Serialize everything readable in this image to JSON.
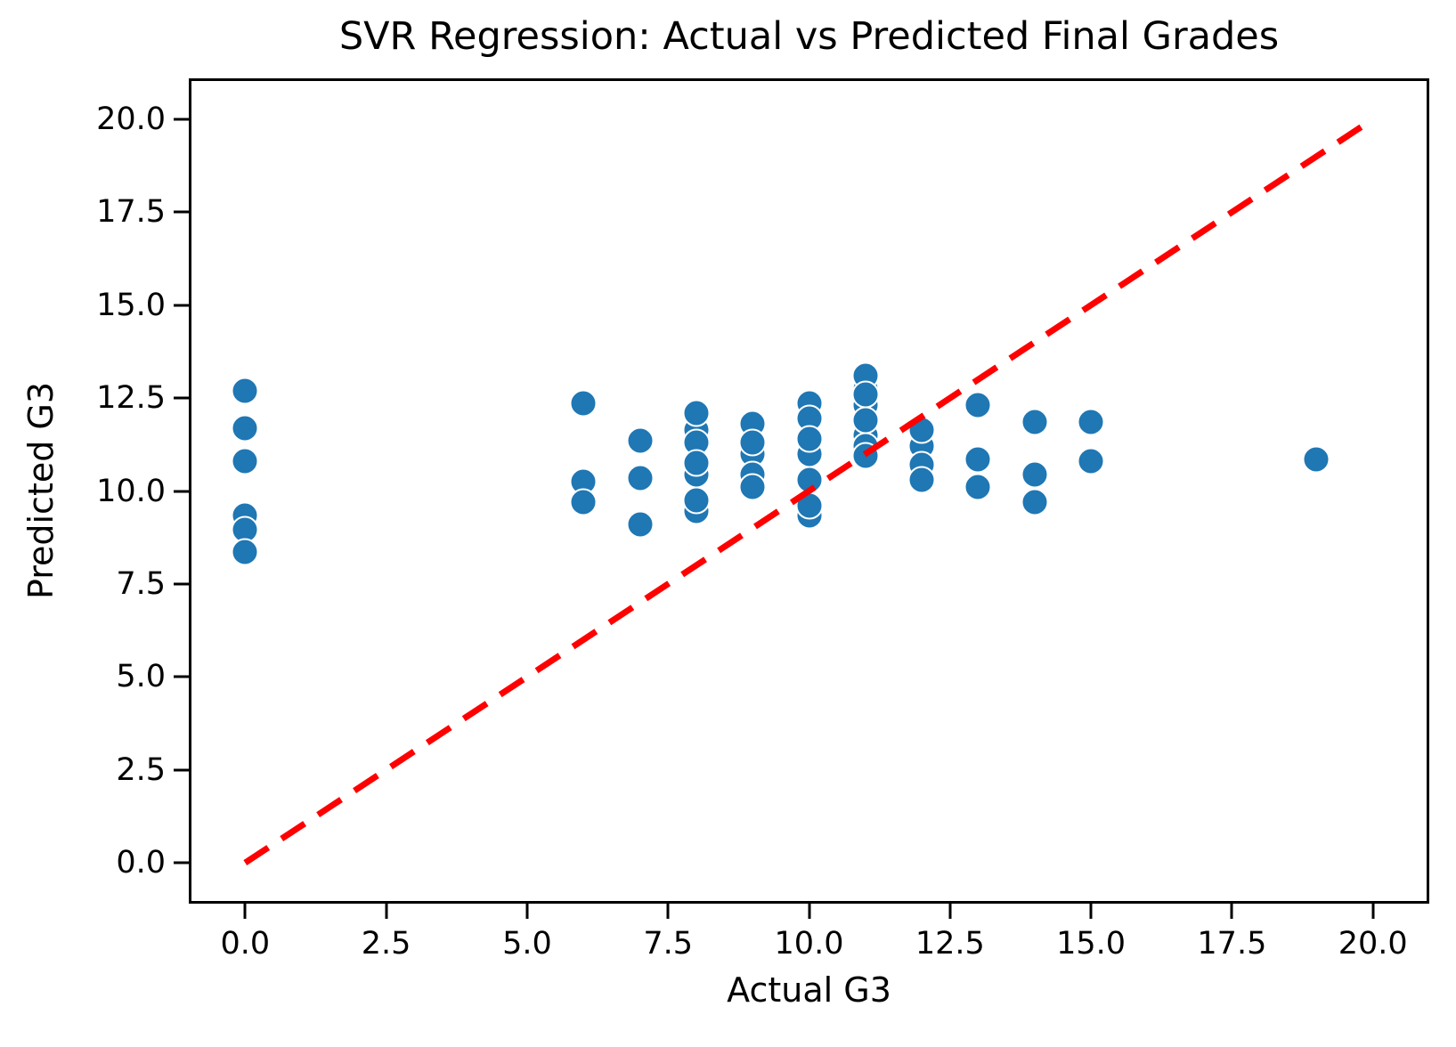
{
  "chart_data": {
    "type": "scatter",
    "title": "SVR Regression: Actual vs Predicted Final Grades",
    "xlabel": "Actual G3",
    "ylabel": "Predicted G3",
    "xlim": [
      -1.0,
      21.0
    ],
    "ylim": [
      -1.1,
      21.1
    ],
    "x_ticks": [
      0.0,
      2.5,
      5.0,
      7.5,
      10.0,
      12.5,
      15.0,
      17.5,
      20.0
    ],
    "x_tick_labels": [
      "0.0",
      "2.5",
      "5.0",
      "7.5",
      "10.0",
      "12.5",
      "15.0",
      "17.5",
      "20.0"
    ],
    "y_ticks": [
      0.0,
      2.5,
      5.0,
      7.5,
      10.0,
      12.5,
      15.0,
      17.5,
      20.0
    ],
    "y_tick_labels": [
      "0.0",
      "2.5",
      "5.0",
      "7.5",
      "10.0",
      "12.5",
      "15.0",
      "17.5",
      "20.0"
    ],
    "grid": false,
    "legend": "none",
    "colors": {
      "point_fill": "#1f77b4",
      "point_edge": "#ffffff",
      "identity_line": "#ff0000",
      "axes": "#000000",
      "background": "#ffffff"
    },
    "series": [
      {
        "name": "predicted-vs-actual",
        "type": "scatter",
        "points": [
          [
            0,
            12.7
          ],
          [
            0,
            11.7
          ],
          [
            0,
            10.8
          ],
          [
            0,
            9.35
          ],
          [
            0,
            8.95
          ],
          [
            0,
            8.35
          ],
          [
            6,
            12.35
          ],
          [
            6,
            10.25
          ],
          [
            6,
            9.7
          ],
          [
            7,
            11.35
          ],
          [
            7,
            10.35
          ],
          [
            7,
            9.1
          ],
          [
            8,
            11.65
          ],
          [
            8,
            12.1
          ],
          [
            8,
            11.3
          ],
          [
            8,
            10.45
          ],
          [
            8,
            10.75
          ],
          [
            8,
            9.45
          ],
          [
            8,
            9.75
          ],
          [
            9,
            11.8
          ],
          [
            9,
            11.0
          ],
          [
            9,
            11.3
          ],
          [
            9,
            10.45
          ],
          [
            9,
            10.1
          ],
          [
            10,
            12.35
          ],
          [
            10,
            11.0
          ],
          [
            10,
            11.95
          ],
          [
            10,
            11.4
          ],
          [
            10,
            9.35
          ],
          [
            10,
            10.3
          ],
          [
            10,
            9.6
          ],
          [
            11,
            12.75
          ],
          [
            11,
            13.1
          ],
          [
            11,
            12.3
          ],
          [
            11,
            12.6
          ],
          [
            11,
            11.5
          ],
          [
            11,
            11.2
          ],
          [
            11,
            11.9
          ],
          [
            11,
            10.95
          ],
          [
            12,
            11.2
          ],
          [
            12,
            11.65
          ],
          [
            12,
            10.7
          ],
          [
            12,
            10.3
          ],
          [
            13,
            12.3
          ],
          [
            13,
            10.85
          ],
          [
            13,
            10.1
          ],
          [
            14,
            11.85
          ],
          [
            14,
            10.45
          ],
          [
            14,
            9.7
          ],
          [
            15,
            11.85
          ],
          [
            15,
            10.8
          ],
          [
            19,
            10.85
          ]
        ]
      },
      {
        "name": "identity-line",
        "type": "line",
        "style": "dashed",
        "points": [
          [
            0,
            0
          ],
          [
            20,
            20
          ]
        ]
      }
    ]
  }
}
